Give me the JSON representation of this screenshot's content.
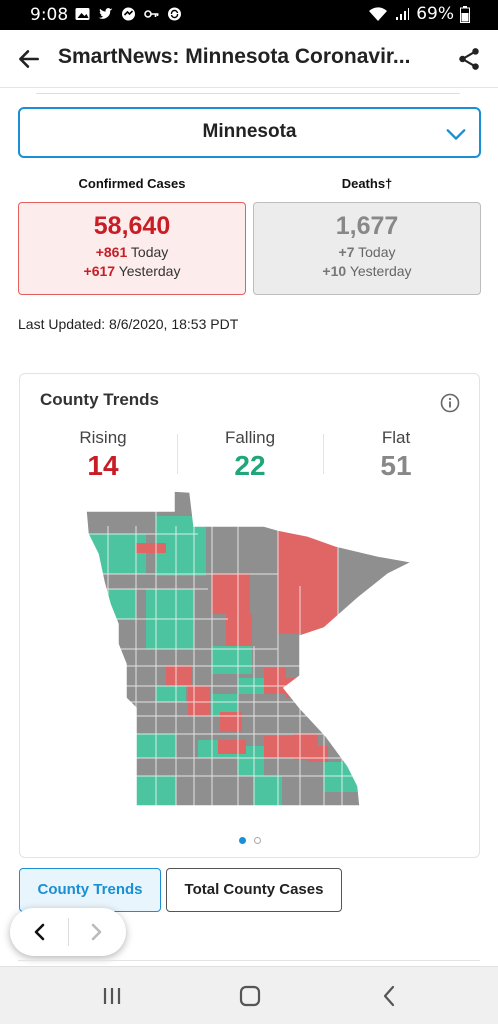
{
  "status_bar": {
    "time": "9:08",
    "battery": "69%",
    "left_icons": [
      "image-notification-icon",
      "twitter-icon",
      "news-icon",
      "key-icon",
      "sync-icon"
    ],
    "right_icons": [
      "wifi-icon",
      "signal-icon",
      "battery-icon"
    ]
  },
  "app_bar": {
    "title": "SmartNews: Minnesota Coronavir...",
    "back_icon": "back-arrow-icon",
    "share_icon": "share-icon"
  },
  "region_select": {
    "value": "Minnesota",
    "icon": "chevron-down-icon"
  },
  "stats": {
    "confirmed": {
      "heading": "Confirmed Cases",
      "total": "58,640",
      "today_value": "+861",
      "today_label": "Today",
      "yesterday_value": "+617",
      "yesterday_label": "Yesterday"
    },
    "deaths": {
      "heading": "Deaths†",
      "total": "1,677",
      "today_value": "+7",
      "today_label": "Today",
      "yesterday_value": "+10",
      "yesterday_label": "Yesterday"
    }
  },
  "last_updated": "Last Updated: 8/6/2020, 18:53 PDT",
  "county_trends": {
    "title": "County Trends",
    "info_icon": "info-icon",
    "rising": {
      "label": "Rising",
      "count": "14"
    },
    "falling": {
      "label": "Falling",
      "count": "22"
    },
    "flat": {
      "label": "Flat",
      "count": "51"
    },
    "colors": {
      "rising": "#e06666",
      "falling": "#4dc4a0",
      "flat": "#8f8f8f"
    },
    "carousel_page": 1,
    "carousel_pages": 2
  },
  "tabs": [
    {
      "label": "County Trends",
      "active": true
    },
    {
      "label": "Total County Cases",
      "active": false
    }
  ],
  "pager": {
    "prev_icon": "chevron-left-icon",
    "next_icon": "chevron-right-icon"
  },
  "nav_bar": {
    "recents_icon": "recents-icon",
    "home_icon": "home-icon",
    "back_icon": "nav-back-icon"
  },
  "colors": {
    "accent": "#1a8fd4",
    "confirmed": "#c81d25"
  }
}
